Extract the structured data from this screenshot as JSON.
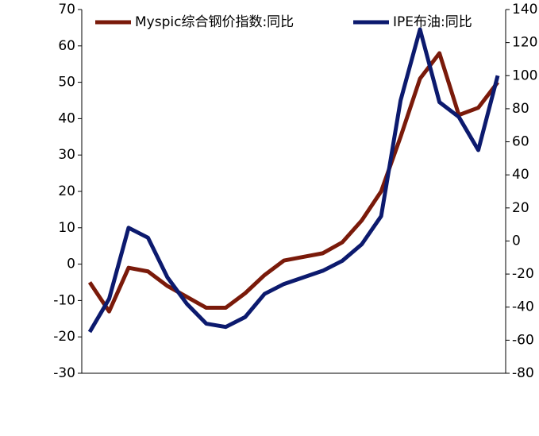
{
  "chart_data": {
    "type": "line",
    "categories": [
      null,
      null,
      null,
      null,
      null,
      null,
      null,
      null,
      null,
      null,
      null,
      null,
      null,
      null,
      null,
      null,
      null,
      null,
      null,
      null,
      null,
      null
    ],
    "series": [
      {
        "name": "Myspic综合钢价指数:同比",
        "color": "#7a1a0a",
        "axis": "y",
        "values": [
          -5,
          -13,
          -1,
          -2,
          -6,
          -9,
          -12,
          -12,
          -8,
          -3,
          1,
          2,
          3,
          6,
          12,
          20,
          35,
          51,
          58,
          41,
          43,
          50
        ]
      },
      {
        "name": "IPE布油:同比",
        "color": "#0c1a6e",
        "axis": "y2",
        "values": [
          -55,
          -35,
          8,
          2,
          -22,
          -38,
          -50,
          -52,
          -46,
          -32,
          -26,
          -22,
          -18,
          -12,
          -2,
          15,
          85,
          128,
          84,
          75,
          55,
          100
        ]
      }
    ],
    "ylim": [
      -30,
      70
    ],
    "yticks": [
      -30,
      -20,
      -10,
      0,
      10,
      20,
      30,
      40,
      50,
      60,
      70
    ],
    "y2lim": [
      -80,
      140
    ],
    "y2ticks": [
      -80,
      -60,
      -40,
      -20,
      0,
      20,
      40,
      60,
      80,
      100,
      120,
      140
    ],
    "legend": "top"
  }
}
